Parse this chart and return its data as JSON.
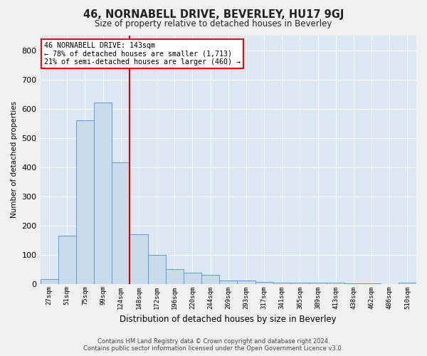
{
  "title": "46, NORNABELL DRIVE, BEVERLEY, HU17 9GJ",
  "subtitle": "Size of property relative to detached houses in Beverley",
  "xlabel": "Distribution of detached houses by size in Beverley",
  "ylabel": "Number of detached properties",
  "bar_color": "#c9daea",
  "bar_edge_color": "#5b9bd5",
  "background_color": "#dce9f5",
  "grid_color": "#ffffff",
  "fig_background": "#f0f0f0",
  "categories": [
    "27sqm",
    "51sqm",
    "75sqm",
    "99sqm",
    "124sqm",
    "148sqm",
    "172sqm",
    "196sqm",
    "220sqm",
    "244sqm",
    "269sqm",
    "293sqm",
    "317sqm",
    "341sqm",
    "365sqm",
    "389sqm",
    "413sqm",
    "438sqm",
    "462sqm",
    "486sqm",
    "510sqm"
  ],
  "values": [
    17,
    165,
    560,
    620,
    415,
    170,
    100,
    50,
    38,
    30,
    12,
    12,
    7,
    3,
    3,
    3,
    5,
    1,
    1,
    0,
    5
  ],
  "vline_color": "#cc0000",
  "vline_x_index": 4.5,
  "annotation_lines": [
    "46 NORNABELL DRIVE: 143sqm",
    "← 78% of detached houses are smaller (1,713)",
    "21% of semi-detached houses are larger (460) →"
  ],
  "ylim": [
    0,
    850
  ],
  "yticks": [
    0,
    100,
    200,
    300,
    400,
    500,
    600,
    700,
    800
  ],
  "footer_line1": "Contains HM Land Registry data © Crown copyright and database right 2024.",
  "footer_line2": "Contains public sector information licensed under the Open Government Licence v3.0."
}
